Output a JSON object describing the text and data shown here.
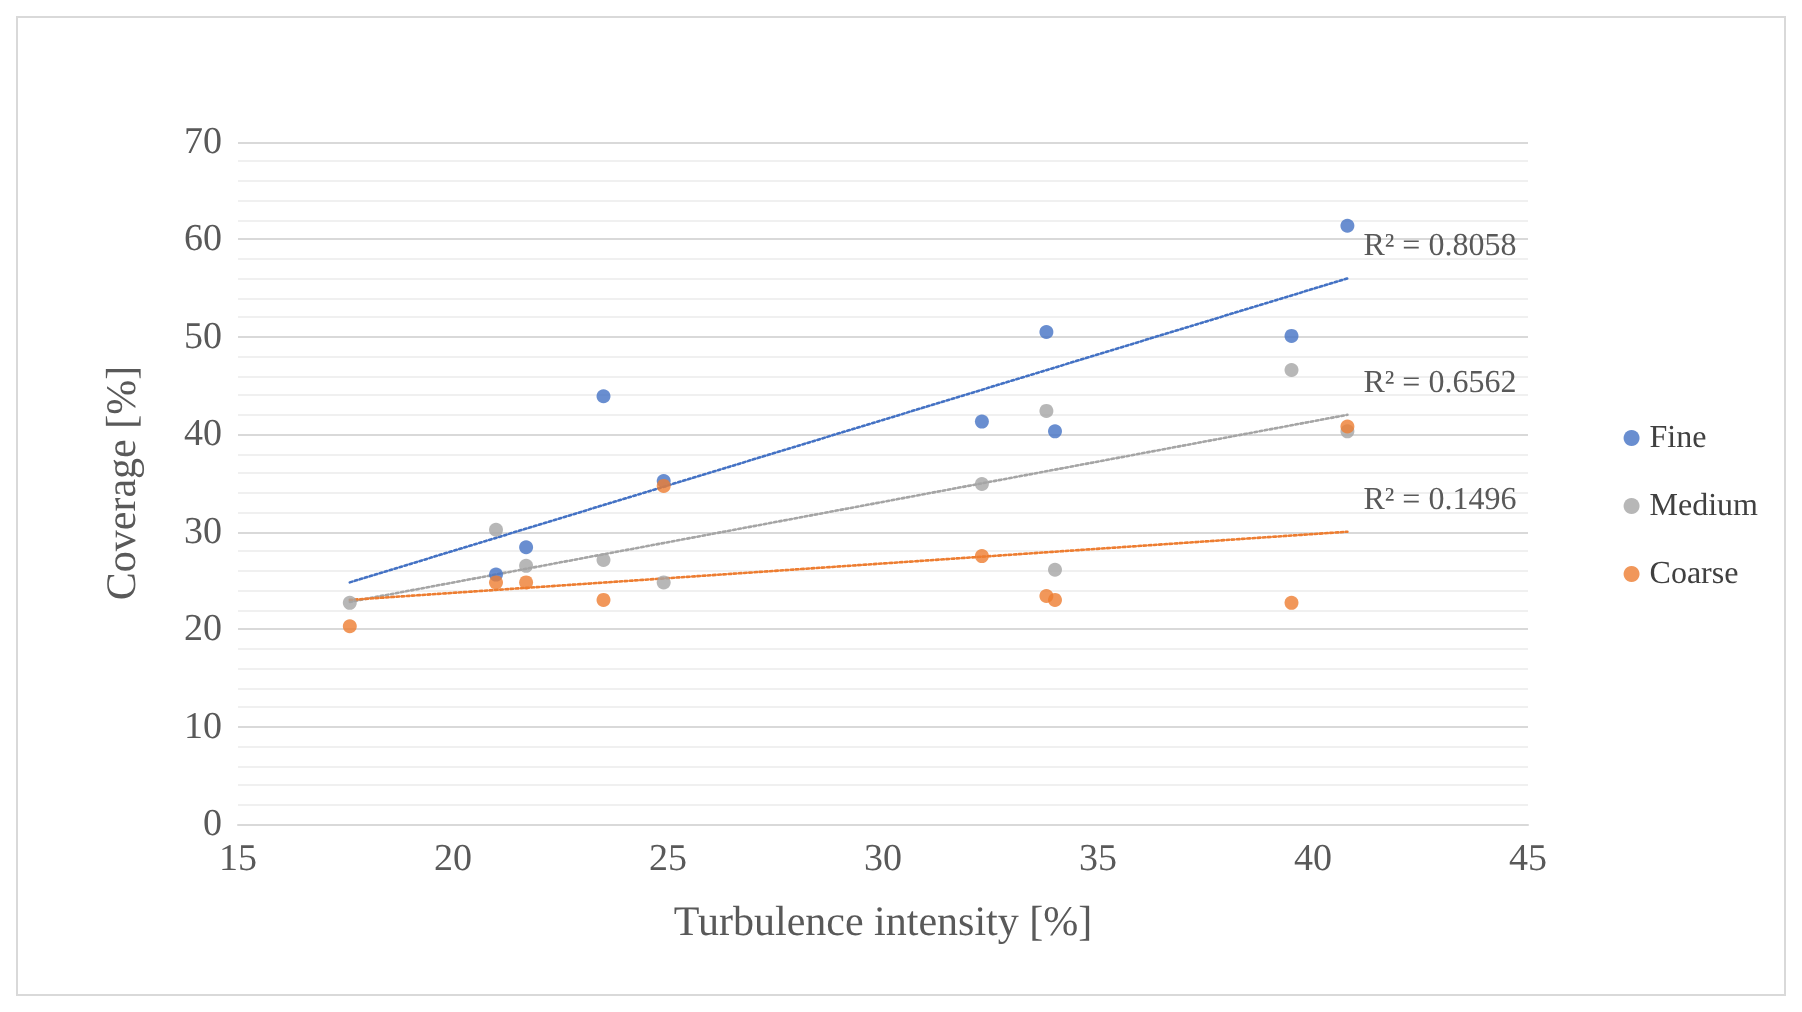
{
  "chart_data": {
    "type": "scatter",
    "xlabel": "Turbulence intensity [%]",
    "ylabel": "Coverage [%]",
    "xlim": [
      15,
      45
    ],
    "xticks": [
      15,
      20,
      25,
      30,
      35,
      40,
      45
    ],
    "ylim": [
      0,
      70
    ],
    "yticks": [
      0,
      10,
      20,
      30,
      40,
      50,
      60,
      70
    ],
    "grid": "y",
    "legend": "right",
    "marker": "circle",
    "series": [
      {
        "name": "Fine",
        "color": "#4472c4",
        "x": [
          21.0,
          21.7,
          23.5,
          24.9,
          32.3,
          33.8,
          34.0,
          39.5,
          40.8
        ],
        "values": [
          25.6,
          28.4,
          43.9,
          35.2,
          41.3,
          50.5,
          40.3,
          50.1,
          61.4
        ]
      },
      {
        "name": "Medium",
        "color": "#a5a5a5",
        "x": [
          17.6,
          21.0,
          21.7,
          23.5,
          24.9,
          32.3,
          33.8,
          34.0,
          39.5,
          40.8
        ],
        "values": [
          22.7,
          30.2,
          26.5,
          27.1,
          24.8,
          34.9,
          42.4,
          26.1,
          46.6,
          40.3
        ]
      },
      {
        "name": "Coarse",
        "color": "#ed7d31",
        "x": [
          17.6,
          21.0,
          21.7,
          23.5,
          24.9,
          32.3,
          33.8,
          34.0,
          39.5,
          40.8
        ],
        "values": [
          20.3,
          24.8,
          24.8,
          23.0,
          34.7,
          27.5,
          23.4,
          23.0,
          22.7,
          40.8
        ]
      },
      {
        "type": "line",
        "line_style": "dotted",
        "marker": "none",
        "color": "#4472c4",
        "x": [
          17.6,
          40.8
        ],
        "values": [
          24.8,
          56.0
        ]
      },
      {
        "type": "line",
        "line_style": "dotted",
        "marker": "none",
        "color": "#a5a5a5",
        "x": [
          17.6,
          40.8
        ],
        "values": [
          22.8,
          42.0
        ]
      },
      {
        "type": "line",
        "line_style": "dotted",
        "marker": "none",
        "color": "#ed7d31",
        "x": [
          17.6,
          40.8
        ],
        "values": [
          23.0,
          30.0
        ]
      }
    ],
    "annotations": [
      "R² = 0.8058",
      "R² = 0.6562",
      "R² = 0.1496"
    ]
  }
}
